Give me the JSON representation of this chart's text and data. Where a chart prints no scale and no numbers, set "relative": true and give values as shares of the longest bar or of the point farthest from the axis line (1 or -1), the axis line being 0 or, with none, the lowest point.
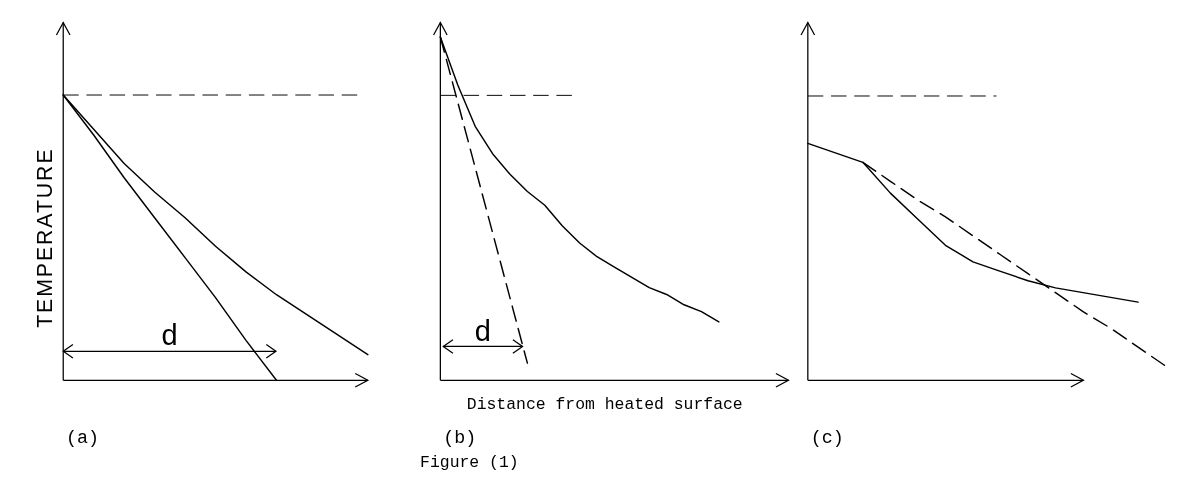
{
  "chart_data": [
    {
      "type": "line",
      "title": "(a)",
      "ylabel": "TEMPERATURE",
      "relative": true,
      "annotations": [
        "d"
      ],
      "categories": [
        null,
        null,
        null,
        null,
        null,
        null,
        null,
        null,
        null,
        null,
        null
      ],
      "ref_lines": [
        {
          "axis": "y",
          "value": 1,
          "line_style": "dashed"
        }
      ],
      "series": [
        {
          "color": "#000000",
          "line_style": "solid",
          "values": [
            1,
            0.88,
            0.76,
            0.66,
            0.57,
            0.47,
            0.38,
            0.3,
            0.23,
            0.16,
            0.09
          ]
        },
        {
          "color": "#000000",
          "line_style": "solid",
          "values": [
            1,
            0.86,
            0.71,
            0.57,
            0.43,
            0.29,
            0.14,
            0,
            null,
            null,
            null
          ]
        }
      ]
    },
    {
      "type": "line",
      "title": "(b)",
      "xlabel": "Distance from heated surface",
      "relative": true,
      "annotations": [
        "d",
        "Figure (1)"
      ],
      "categories": [
        null,
        null,
        null,
        null,
        null,
        null,
        null,
        null,
        null,
        null,
        null,
        null,
        null,
        null,
        null,
        null,
        null,
        null,
        null,
        null,
        null
      ],
      "ref_lines": [
        {
          "axis": "y",
          "value": 0.83,
          "line_style": "dashed"
        }
      ],
      "series": [
        {
          "color": "#000000",
          "line_style": "solid",
          "values": [
            1,
            0.86,
            0.74,
            0.66,
            0.6,
            0.55,
            0.51,
            0.45,
            0.4,
            0.36,
            0.33,
            0.3,
            0.27,
            0.25,
            0.22,
            0.2,
            0.17,
            null,
            null,
            null,
            null
          ]
        },
        {
          "color": "#000000",
          "line_style": "dashed",
          "values": [
            1,
            0.81,
            0.62,
            0.43,
            0.24,
            0.05,
            null,
            null,
            null,
            null,
            null,
            null,
            null,
            null,
            null,
            null,
            null,
            null,
            null,
            null,
            null
          ]
        }
      ]
    },
    {
      "type": "line",
      "title": "(c)",
      "relative": true,
      "categories": [
        null,
        null,
        null,
        null,
        null,
        null,
        null,
        null,
        null,
        null,
        null,
        null,
        null,
        null
      ],
      "ref_lines": [
        {
          "axis": "y",
          "value": 1.2,
          "line_style": "dashed"
        }
      ],
      "series": [
        {
          "color": "#000000",
          "line_style": "solid",
          "values": [
            1,
            0.96,
            0.92,
            0.79,
            0.68,
            0.57,
            0.5,
            0.46,
            0.42,
            0.39,
            0.37,
            0.35,
            0.33,
            null
          ]
        },
        {
          "color": "#000000",
          "line_style": "dashed",
          "values": [
            null,
            null,
            0.92,
            0.84,
            0.76,
            0.69,
            0.61,
            0.53,
            0.45,
            0.37,
            0.29,
            0.22,
            0.14,
            0.06
          ]
        }
      ]
    }
  ]
}
